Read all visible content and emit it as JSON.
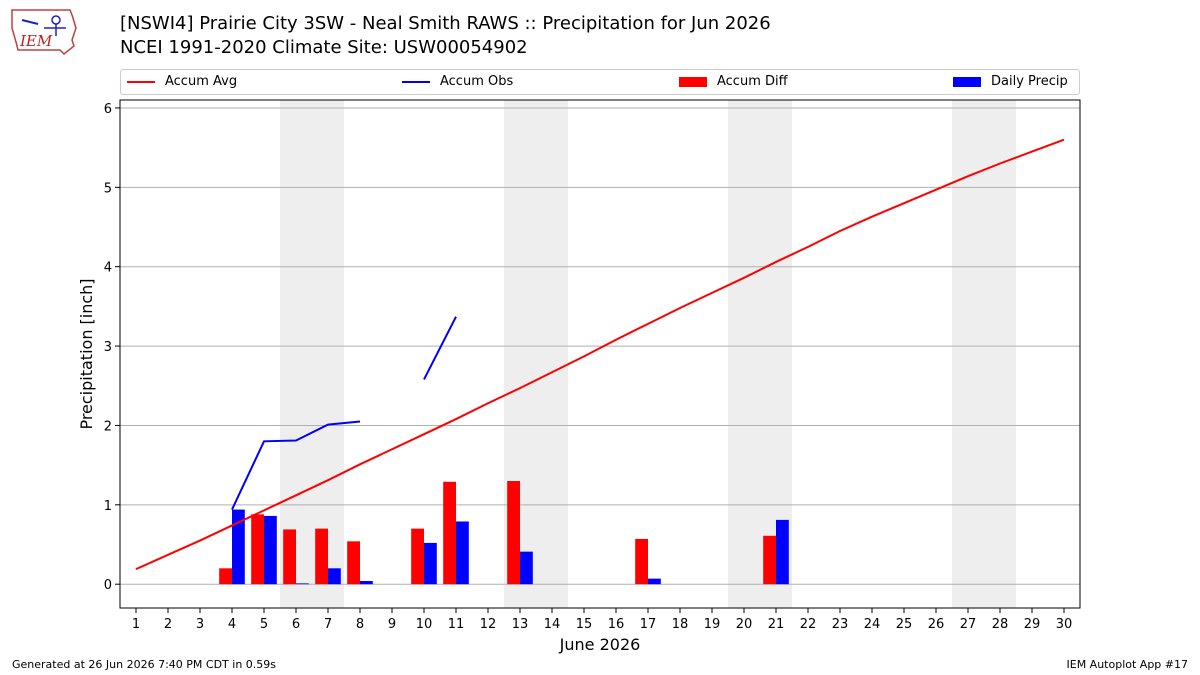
{
  "header": {
    "logo_text": "IEM",
    "title_line1": "[NSWI4] Prairie City 3SW - Neal Smith RAWS :: Precipitation for Jun 2026",
    "title_line2": "NCEI 1991-2020 Climate Site: USW00054902"
  },
  "legend": {
    "accum_avg": "Accum Avg",
    "accum_obs": "Accum Obs",
    "accum_diff": "Accum Diff",
    "daily_precip": "Daily Precip"
  },
  "footer": {
    "generated": "Generated at 26 Jun 2026 7:40 PM CDT in 0.59s",
    "app": "IEM Autoplot App #17"
  },
  "colors": {
    "accum_avg": "#ff0000",
    "accum_obs": "#0000ff",
    "accum_diff": "#ff0000",
    "daily_precip": "#0000ff",
    "weekend_shade": "#eeeeee",
    "grid": "#b0b0b0"
  },
  "chart_data": {
    "type": "bar",
    "xlabel": "June 2026",
    "ylabel": "Precipitation [inch]",
    "xlim": [
      0.5,
      30.5
    ],
    "ylim": [
      -0.3,
      6.1
    ],
    "yticks": [
      0,
      1,
      2,
      3,
      4,
      5,
      6
    ],
    "grid": "y",
    "legend_position": "top",
    "days": [
      1,
      2,
      3,
      4,
      5,
      6,
      7,
      8,
      9,
      10,
      11,
      12,
      13,
      14,
      15,
      16,
      17,
      18,
      19,
      20,
      21,
      22,
      23,
      24,
      25,
      26,
      27,
      28,
      29,
      30
    ],
    "shaded_days": [
      [
        6,
        7
      ],
      [
        13,
        14
      ],
      [
        20,
        21
      ],
      [
        27,
        28
      ]
    ],
    "series": [
      {
        "name": "Accum Avg",
        "kind": "line",
        "x": [
          1,
          2,
          3,
          4,
          5,
          6,
          7,
          8,
          9,
          10,
          11,
          12,
          13,
          14,
          15,
          16,
          17,
          18,
          19,
          20,
          21,
          22,
          23,
          24,
          25,
          26,
          27,
          28,
          29,
          30
        ],
        "values": [
          0.19,
          0.37,
          0.55,
          0.74,
          0.93,
          1.12,
          1.31,
          1.51,
          1.7,
          1.89,
          2.08,
          2.28,
          2.47,
          2.67,
          2.87,
          3.08,
          3.28,
          3.48,
          3.67,
          3.86,
          4.06,
          4.25,
          4.45,
          4.63,
          4.8,
          4.97,
          5.14,
          5.3,
          5.45,
          5.6
        ]
      },
      {
        "name": "Accum Obs",
        "kind": "line",
        "segments": [
          {
            "x": [
              4,
              5,
              6,
              7,
              8
            ],
            "values": [
              0.94,
              1.8,
              1.81,
              2.01,
              2.05
            ]
          },
          {
            "x": [
              10,
              11
            ],
            "values": [
              2.58,
              3.37
            ]
          }
        ]
      },
      {
        "name": "Accum Diff",
        "kind": "bar",
        "x": [
          4,
          5,
          6,
          7,
          8,
          10,
          11,
          13,
          17,
          21
        ],
        "values": [
          0.2,
          0.88,
          0.69,
          0.7,
          0.54,
          0.7,
          1.29,
          1.3,
          0.57,
          0.61
        ]
      },
      {
        "name": "Daily Precip",
        "kind": "bar",
        "x": [
          4,
          5,
          6,
          7,
          8,
          10,
          11,
          13,
          17,
          21
        ],
        "values": [
          0.94,
          0.86,
          0.01,
          0.2,
          0.04,
          0.52,
          0.79,
          0.41,
          0.07,
          0.81
        ]
      }
    ]
  }
}
